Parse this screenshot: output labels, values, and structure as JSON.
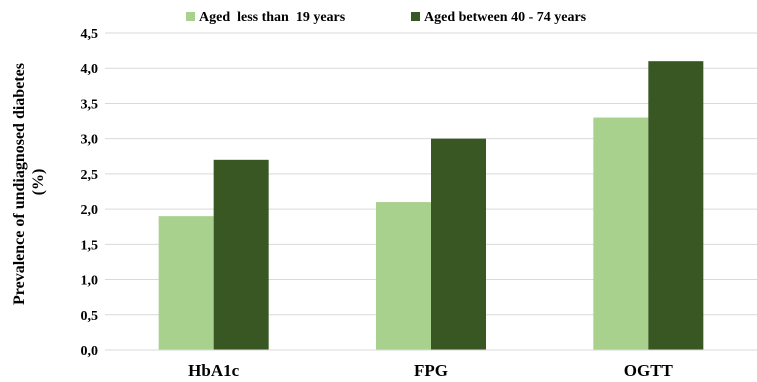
{
  "chart_data": {
    "type": "bar",
    "categories": [
      "HbA1c",
      "FPG",
      "OGTT"
    ],
    "series": [
      {
        "name": "Aged  less than  19 years",
        "values": [
          1.9,
          2.1,
          3.3
        ],
        "color": "#a9d18e"
      },
      {
        "name": "Aged between 40 - 74 years",
        "values": [
          2.7,
          3.0,
          4.1
        ],
        "color": "#385723"
      }
    ],
    "ylabel_line1": "Prevalence of undiagnosed diabetes",
    "ylabel_line2": "(%)",
    "ylim": [
      0,
      4.5
    ],
    "yticks": [
      "0,0",
      "0,5",
      "1,0",
      "1,5",
      "2,0",
      "2,5",
      "3,0",
      "3,5",
      "4,0",
      "4,5"
    ],
    "grid": true,
    "legend_position": "top"
  }
}
